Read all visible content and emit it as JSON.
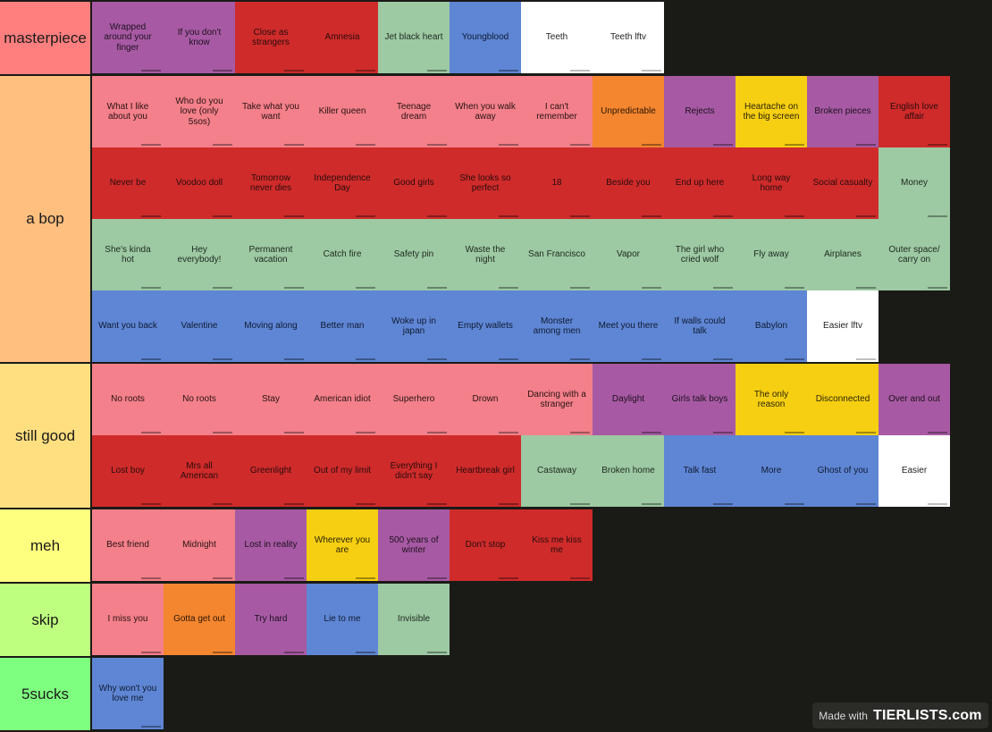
{
  "colors": {
    "background": "#1a1a17",
    "purple": "#a75aa3",
    "red": "#cf2b2b",
    "green": "#9dc9a3",
    "blue": "#5f86d4",
    "white": "#ffffff",
    "pink": "#f3808a",
    "orange": "#f3862f",
    "yellow": "#f6cf12"
  },
  "tiers": [
    {
      "label": "masterpiece",
      "label_color": "#ff7f7f",
      "items": [
        {
          "text": "Wrapped around your finger",
          "color": "purple"
        },
        {
          "text": "If you don't know",
          "color": "purple"
        },
        {
          "text": "Close as strangers",
          "color": "red"
        },
        {
          "text": "Amnesia",
          "color": "red"
        },
        {
          "text": "Jet black heart",
          "color": "green"
        },
        {
          "text": "Youngblood",
          "color": "blue"
        },
        {
          "text": "Teeth",
          "color": "white"
        },
        {
          "text": "Teeth lftv",
          "color": "white"
        }
      ]
    },
    {
      "label": "a bop",
      "label_color": "#ffbf7f",
      "items": [
        {
          "text": "What I like about you",
          "color": "pink"
        },
        {
          "text": "Who do you love (only 5sos)",
          "color": "pink"
        },
        {
          "text": "Take what you want",
          "color": "pink"
        },
        {
          "text": "Killer queen",
          "color": "pink"
        },
        {
          "text": "Teenage dream",
          "color": "pink"
        },
        {
          "text": "When you walk away",
          "color": "pink"
        },
        {
          "text": "I can't remember",
          "color": "pink"
        },
        {
          "text": "Unpredictable",
          "color": "orange"
        },
        {
          "text": "Rejects",
          "color": "purple"
        },
        {
          "text": "Heartache on the big screen",
          "color": "yellow"
        },
        {
          "text": "Broken pieces",
          "color": "purple"
        },
        {
          "text": "English love affair",
          "color": "red"
        },
        {
          "text": "Never be",
          "color": "red"
        },
        {
          "text": "Voodoo doll",
          "color": "red"
        },
        {
          "text": "Tomorrow never dies",
          "color": "red"
        },
        {
          "text": "Independence Day",
          "color": "red"
        },
        {
          "text": "Good girls",
          "color": "red"
        },
        {
          "text": "She looks so perfect",
          "color": "red"
        },
        {
          "text": "18",
          "color": "red"
        },
        {
          "text": "Beside you",
          "color": "red"
        },
        {
          "text": "End up here",
          "color": "red"
        },
        {
          "text": "Long way home",
          "color": "red"
        },
        {
          "text": "Social casualty",
          "color": "red"
        },
        {
          "text": "Money",
          "color": "green"
        },
        {
          "text": "She's kinda hot",
          "color": "green"
        },
        {
          "text": "Hey everybody!",
          "color": "green"
        },
        {
          "text": "Permanent vacation",
          "color": "green"
        },
        {
          "text": "Catch fire",
          "color": "green"
        },
        {
          "text": "Safety pin",
          "color": "green"
        },
        {
          "text": "Waste the night",
          "color": "green"
        },
        {
          "text": "San Francisco",
          "color": "green"
        },
        {
          "text": "Vapor",
          "color": "green"
        },
        {
          "text": "The girl who cried wolf",
          "color": "green"
        },
        {
          "text": "Fly away",
          "color": "green"
        },
        {
          "text": "Airplanes",
          "color": "green"
        },
        {
          "text": "Outer space/ carry on",
          "color": "green"
        },
        {
          "text": "Want you back",
          "color": "blue"
        },
        {
          "text": "Valentine",
          "color": "blue"
        },
        {
          "text": "Moving along",
          "color": "blue"
        },
        {
          "text": "Better man",
          "color": "blue"
        },
        {
          "text": "Woke up in japan",
          "color": "blue"
        },
        {
          "text": "Empty wallets",
          "color": "blue"
        },
        {
          "text": "Monster among men",
          "color": "blue"
        },
        {
          "text": "Meet you there",
          "color": "blue"
        },
        {
          "text": "If walls could talk",
          "color": "blue"
        },
        {
          "text": "Babylon",
          "color": "blue"
        },
        {
          "text": "Easier lftv",
          "color": "white"
        }
      ]
    },
    {
      "label": "still good",
      "label_color": "#ffdf7f",
      "items": [
        {
          "text": "No roots",
          "color": "pink"
        },
        {
          "text": "No roots",
          "color": "pink"
        },
        {
          "text": "Stay",
          "color": "pink"
        },
        {
          "text": "American idiot",
          "color": "pink"
        },
        {
          "text": "Superhero",
          "color": "pink"
        },
        {
          "text": "Drown",
          "color": "pink"
        },
        {
          "text": "Dancing with a stranger",
          "color": "pink"
        },
        {
          "text": "Daylight",
          "color": "purple"
        },
        {
          "text": "Girls talk boys",
          "color": "purple"
        },
        {
          "text": "The only reason",
          "color": "yellow"
        },
        {
          "text": "Disconnected",
          "color": "yellow"
        },
        {
          "text": "Over and out",
          "color": "purple"
        },
        {
          "text": "Lost boy",
          "color": "red"
        },
        {
          "text": "Mrs all American",
          "color": "red"
        },
        {
          "text": "Greenlight",
          "color": "red"
        },
        {
          "text": "Out of my limit",
          "color": "red"
        },
        {
          "text": "Everything I didn't say",
          "color": "red"
        },
        {
          "text": "Heartbreak girl",
          "color": "red"
        },
        {
          "text": "Castaway",
          "color": "green"
        },
        {
          "text": "Broken home",
          "color": "green"
        },
        {
          "text": "Talk fast",
          "color": "blue"
        },
        {
          "text": "More",
          "color": "blue"
        },
        {
          "text": "Ghost of you",
          "color": "blue"
        },
        {
          "text": "Easier",
          "color": "white"
        }
      ]
    },
    {
      "label": "meh",
      "label_color": "#ffff7f",
      "items": [
        {
          "text": "Best friend",
          "color": "pink"
        },
        {
          "text": "Midnight",
          "color": "pink"
        },
        {
          "text": "Lost in reality",
          "color": "purple"
        },
        {
          "text": "Wherever you are",
          "color": "yellow"
        },
        {
          "text": "500 years of winter",
          "color": "purple"
        },
        {
          "text": "Don't stop",
          "color": "red"
        },
        {
          "text": "Kiss me kiss me",
          "color": "red"
        }
      ]
    },
    {
      "label": "skip",
      "label_color": "#bfff7f",
      "items": [
        {
          "text": "I miss you",
          "color": "pink"
        },
        {
          "text": "Gotta get out",
          "color": "orange"
        },
        {
          "text": "Try hard",
          "color": "purple"
        },
        {
          "text": "Lie to me",
          "color": "blue"
        },
        {
          "text": "Invisible",
          "color": "green"
        }
      ]
    },
    {
      "label": "5sucks",
      "label_color": "#7fff7f",
      "items": [
        {
          "text": "Why won't you love me",
          "color": "blue"
        }
      ]
    }
  ],
  "watermark": {
    "made_with": "Made with",
    "logo": "TIERLISTS.com"
  }
}
